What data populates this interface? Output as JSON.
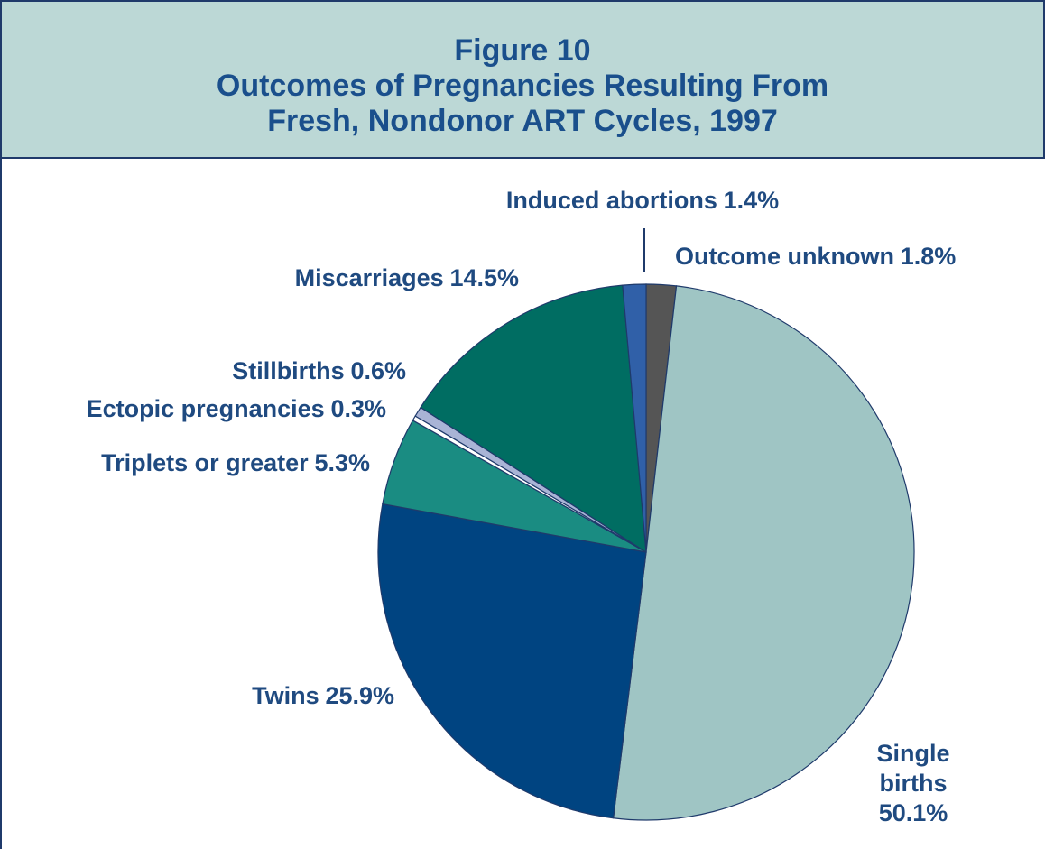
{
  "chart_data": {
    "type": "pie",
    "title": [
      "Figure 10",
      "Outcomes of Pregnancies Resulting From",
      "Fresh, Nondonor ART Cycles, 1997"
    ],
    "categories": [
      "Outcome unknown",
      "Single births",
      "Twins",
      "Triplets or greater",
      "Ectopic pregnancies",
      "Stillbirths",
      "Miscarriages",
      "Induced abortions"
    ],
    "values": [
      1.8,
      50.1,
      25.9,
      5.3,
      0.3,
      0.6,
      14.5,
      1.4
    ],
    "value_labels": [
      "1.8%",
      "50.1%",
      "25.9%",
      "5.3%",
      "0.3%",
      "0.6%",
      "14.5%",
      "1.4%"
    ],
    "colors": [
      "#555555",
      "#9fc5c4",
      "#004481",
      "#1a8c82",
      "#ffffff",
      "#a9b4d6",
      "#006d62",
      "#3060a8"
    ]
  }
}
